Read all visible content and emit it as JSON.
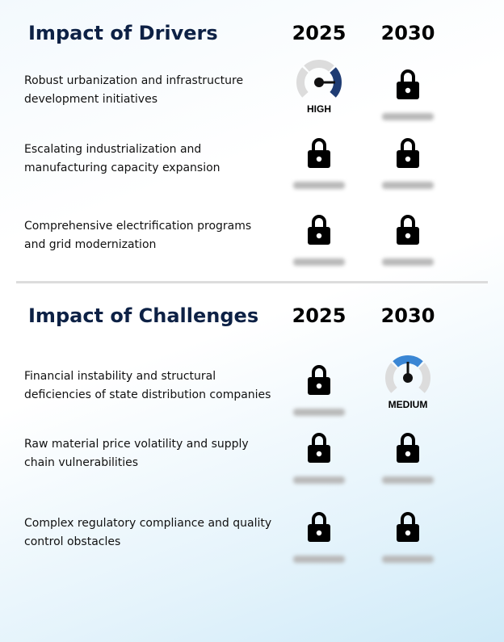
{
  "sections": [
    {
      "title": "Impact of Drivers",
      "years": [
        "2025",
        "2030"
      ],
      "rows": [
        {
          "label": "Robust urbanization and infrastructure development initiatives",
          "cells": [
            {
              "kind": "gauge",
              "label": "HIGH",
              "level": 3,
              "color": "#1f3c73"
            },
            {
              "kind": "lock"
            }
          ]
        },
        {
          "label": "Escalating industrialization and manufacturing capacity expansion",
          "cells": [
            {
              "kind": "lock"
            },
            {
              "kind": "lock"
            }
          ]
        },
        {
          "label": "Comprehensive electrification programs and grid modernization",
          "cells": [
            {
              "kind": "lock"
            },
            {
              "kind": "lock"
            }
          ]
        }
      ]
    },
    {
      "title": "Impact of Challenges",
      "years": [
        "2025",
        "2030"
      ],
      "rows": [
        {
          "label": "Financial instability and structural deficiencies of state distribution companies",
          "cells": [
            {
              "kind": "lock"
            },
            {
              "kind": "gauge",
              "label": "MEDIUM",
              "level": 2,
              "color": "#3a86d4"
            }
          ]
        },
        {
          "label": "Raw material price volatility and supply chain vulnerabilities",
          "cells": [
            {
              "kind": "lock"
            },
            {
              "kind": "lock"
            }
          ]
        },
        {
          "label": "Complex regulatory compliance and quality control obstacles",
          "cells": [
            {
              "kind": "lock"
            },
            {
              "kind": "lock"
            }
          ]
        }
      ]
    }
  ]
}
